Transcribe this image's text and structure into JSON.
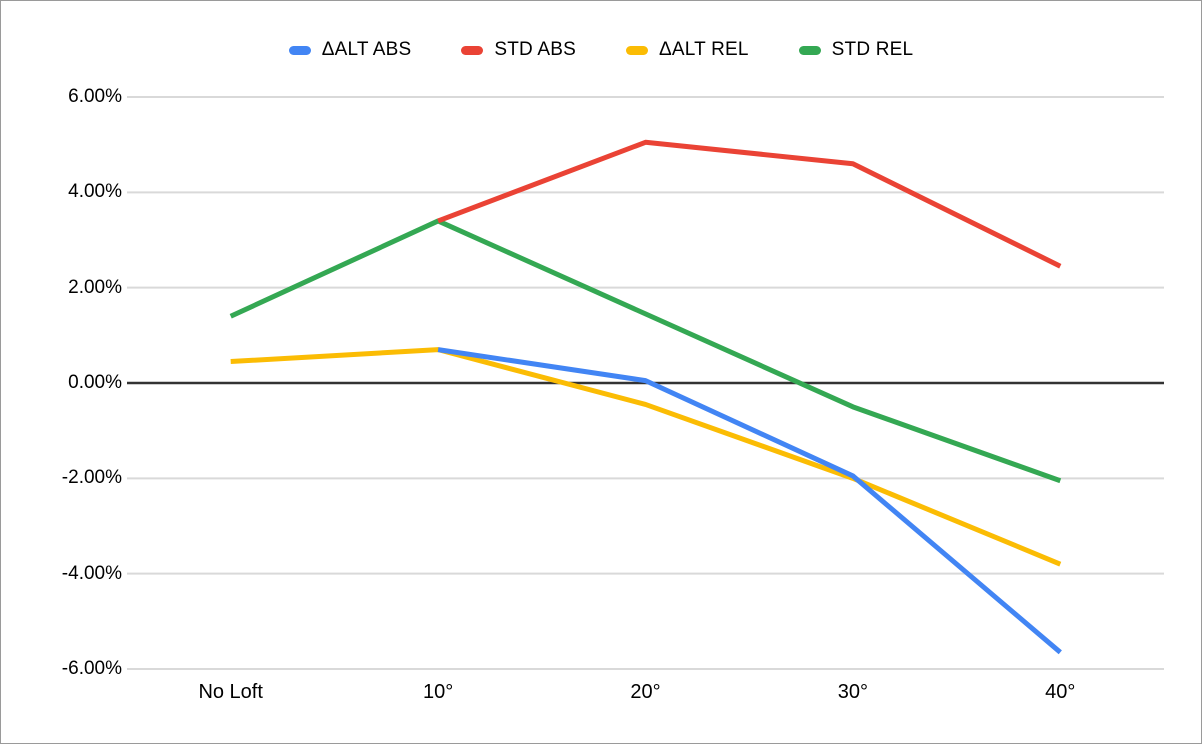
{
  "chart_data": {
    "type": "line",
    "categories": [
      "No Loft",
      "10°",
      "20°",
      "30°",
      "40°"
    ],
    "series": [
      {
        "name": "ΔALT ABS",
        "color": "#4285f4",
        "values": [
          null,
          0.7,
          0.05,
          -1.95,
          -5.65
        ]
      },
      {
        "name": "STD ABS",
        "color": "#ea4335",
        "values": [
          null,
          3.4,
          5.05,
          4.6,
          2.45
        ]
      },
      {
        "name": "ΔALT REL",
        "color": "#fbbc04",
        "values": [
          0.45,
          0.7,
          -0.45,
          -2.0,
          -3.8
        ]
      },
      {
        "name": "STD REL",
        "color": "#34a853",
        "values": [
          1.4,
          3.4,
          1.45,
          -0.5,
          -2.05
        ]
      }
    ],
    "title": "",
    "xlabel": "",
    "ylabel": "",
    "ylim": [
      -6,
      6
    ],
    "y_ticks": [
      6,
      4,
      2,
      0,
      -2,
      -4,
      -6
    ],
    "y_tick_labels": [
      "6.00%",
      "4.00%",
      "2.00%",
      "0.00%",
      "-2.00%",
      "-4.00%",
      "-6.00%"
    ],
    "grid": true,
    "gridline_color": "#d9d9d9",
    "zero_baseline": true,
    "baseline_color": "#333333",
    "legend_position": "top"
  }
}
